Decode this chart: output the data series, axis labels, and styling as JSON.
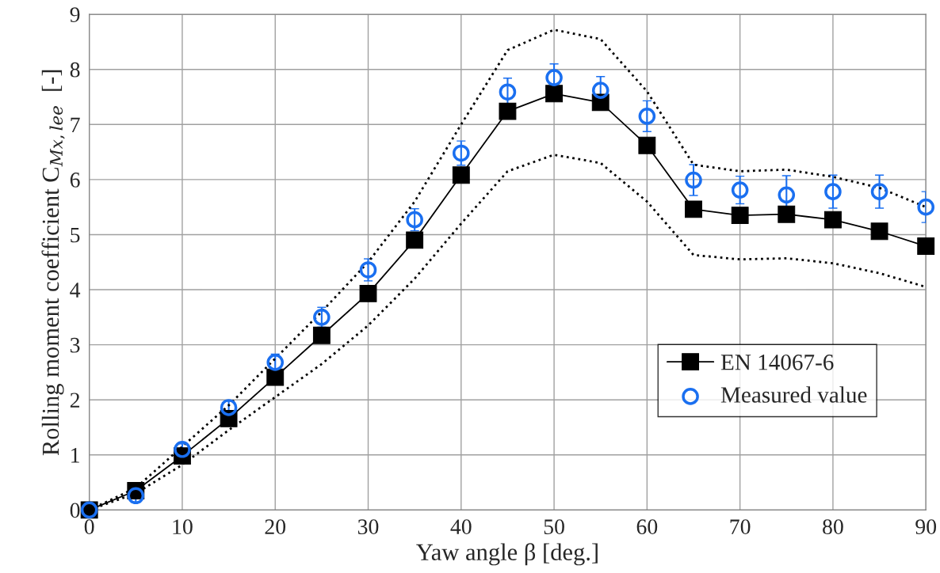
{
  "chart_data": {
    "type": "line",
    "xlabel": "Yaw angle β [deg.]",
    "ylabel": "Rolling moment coefficient C$_{Mx,lee}$  [-]",
    "x": [
      0,
      5,
      10,
      15,
      20,
      25,
      30,
      35,
      40,
      45,
      50,
      55,
      60,
      65,
      70,
      75,
      80,
      85,
      90
    ],
    "series": [
      {
        "line_style": "dotted",
        "marker": "none",
        "color": "#000000",
        "values": [
          0,
          0.4,
          1.15,
          1.9,
          2.75,
          3.6,
          4.5,
          5.6,
          7.0,
          8.35,
          8.72,
          8.55,
          7.6,
          6.27,
          6.15,
          6.18,
          6.05,
          5.85,
          5.5
        ]
      },
      {
        "line_style": "dotted",
        "marker": "none",
        "color": "#000000",
        "values": [
          0,
          0.3,
          0.82,
          1.45,
          2.05,
          2.65,
          3.35,
          4.2,
          5.2,
          6.15,
          6.45,
          6.3,
          5.6,
          4.63,
          4.55,
          4.57,
          4.48,
          4.3,
          4.05
        ]
      },
      {
        "name": "EN 14067-6",
        "line_style": "solid",
        "marker": "square",
        "color": "#000000",
        "values": [
          0,
          0.35,
          0.98,
          1.66,
          2.41,
          3.17,
          3.93,
          4.9,
          6.08,
          7.24,
          7.56,
          7.4,
          6.62,
          5.46,
          5.35,
          5.37,
          5.27,
          5.06,
          4.79
        ]
      },
      {
        "name": "Measured value",
        "type": "scatter",
        "marker": "circle",
        "color": "#1a6ff0",
        "values": [
          0,
          0.26,
          1.1,
          1.86,
          2.68,
          3.5,
          4.36,
          5.27,
          6.48,
          7.59,
          7.85,
          7.62,
          7.15,
          5.99,
          5.81,
          5.72,
          5.78,
          5.78,
          5.5
        ],
        "errors": [
          null,
          0.12,
          0.1,
          0.12,
          0.15,
          0.18,
          0.2,
          0.2,
          0.22,
          0.25,
          0.25,
          0.25,
          0.28,
          0.28,
          0.25,
          0.35,
          0.3,
          0.3,
          0.28
        ]
      }
    ],
    "xlim": [
      0,
      90
    ],
    "xticks": [
      0,
      10,
      20,
      30,
      40,
      50,
      60,
      70,
      80,
      90
    ],
    "ylim": [
      0,
      9
    ],
    "yticks": [
      0,
      1,
      2,
      3,
      4,
      5,
      6,
      7,
      8,
      9
    ],
    "grid": true,
    "legend": "lower right"
  }
}
